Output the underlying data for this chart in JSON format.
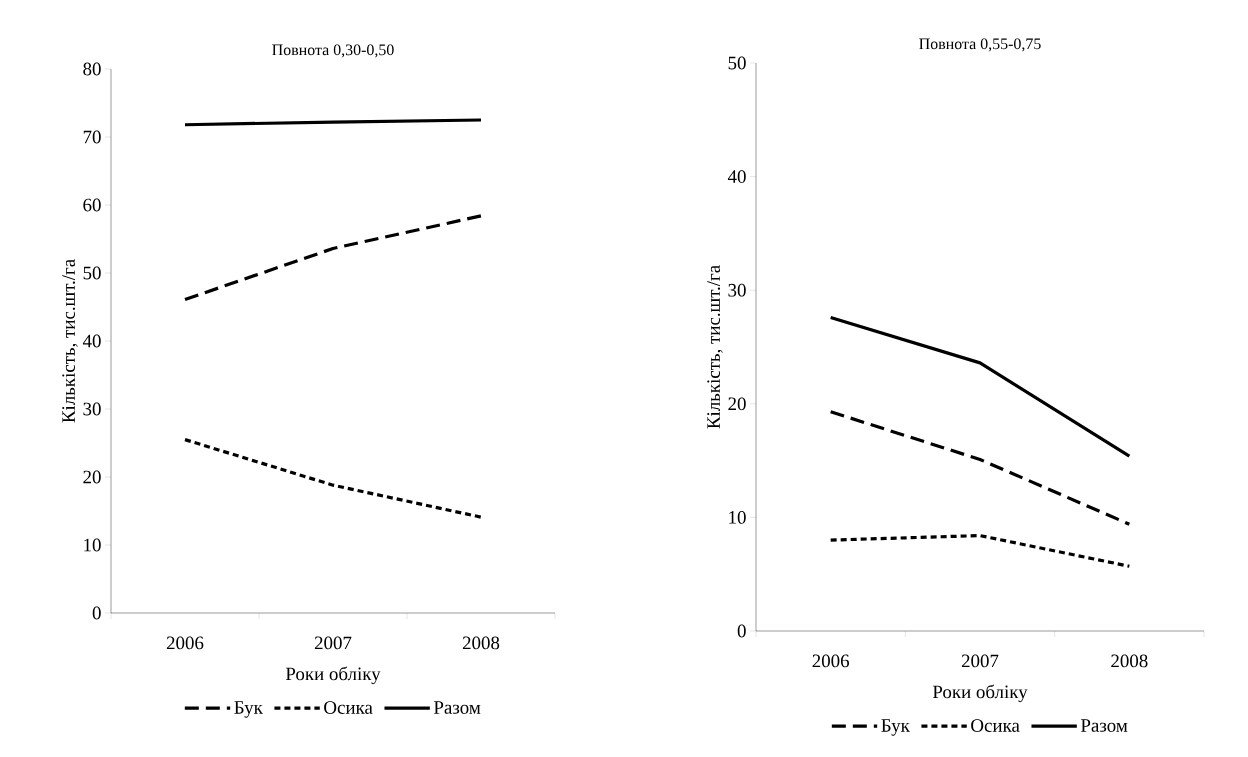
{
  "chart_data": [
    {
      "type": "line",
      "title": "Повнота 0,30-0,50",
      "xlabel": "Роки обліку",
      "ylabel": "Кількість, тис.шт./га",
      "categories": [
        "2006",
        "2007",
        "2008"
      ],
      "ylim": [
        0,
        80
      ],
      "yticks": [
        0,
        10,
        20,
        30,
        40,
        50,
        60,
        70,
        80
      ],
      "grid": false,
      "legend": "bottom",
      "marker": "none",
      "series": [
        {
          "name": "Бук",
          "color": "#000000",
          "line_style": "dashed",
          "values": [
            46.1,
            53.6,
            58.4
          ]
        },
        {
          "name": "Осика",
          "color": "#000000",
          "line_style": "dotted",
          "values": [
            25.5,
            18.8,
            14.1
          ]
        },
        {
          "name": "Разом",
          "color": "#000000",
          "line_style": "solid",
          "values": [
            71.8,
            72.2,
            72.5
          ]
        }
      ]
    },
    {
      "type": "line",
      "title": "Повнота 0,55-0,75",
      "xlabel": "Роки обліку",
      "ylabel": "Кількість, тис.шт./га",
      "categories": [
        "2006",
        "2007",
        "2008"
      ],
      "ylim": [
        0,
        50
      ],
      "yticks": [
        0,
        10,
        20,
        30,
        40,
        50
      ],
      "grid": false,
      "legend": "bottom",
      "marker": "none",
      "series": [
        {
          "name": "Бук",
          "color": "#000000",
          "line_style": "dashed",
          "values": [
            19.3,
            15.1,
            9.4
          ]
        },
        {
          "name": "Осика",
          "color": "#000000",
          "line_style": "dotted",
          "values": [
            8.0,
            8.4,
            5.7
          ]
        },
        {
          "name": "Разом",
          "color": "#000000",
          "line_style": "solid",
          "values": [
            27.6,
            23.6,
            15.4
          ]
        }
      ]
    }
  ]
}
